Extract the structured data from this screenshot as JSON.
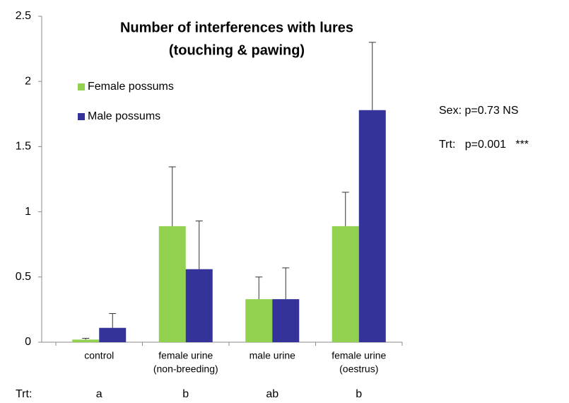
{
  "chart_data": {
    "type": "bar",
    "title": [
      "Number of interferences with lures",
      "(touching & pawing)"
    ],
    "categories": [
      [
        "control"
      ],
      [
        "female urine",
        "(non-breeding)"
      ],
      [
        "male urine"
      ],
      [
        "female urine",
        "(oestrus)"
      ]
    ],
    "series": [
      {
        "name": "Female possums",
        "color": "#92d050",
        "values": [
          0.02,
          0.89,
          0.33,
          0.89
        ],
        "errors": [
          0.01,
          0.455,
          0.17,
          0.26
        ]
      },
      {
        "name": "Male possums",
        "color": "#333399",
        "values": [
          0.11,
          0.56,
          0.33,
          1.78
        ],
        "errors": [
          0.11,
          0.37,
          0.24,
          0.52
        ]
      }
    ],
    "ylim": [
      0,
      2.5
    ],
    "yticks": [
      0,
      0.5,
      1,
      1.5,
      2,
      2.5
    ],
    "annotations": [
      "Sex: p=0.73 NS",
      "Trt:   p=0.001   ***"
    ],
    "group_label": "Trt:",
    "groups": [
      "a",
      "b",
      "ab",
      "b"
    ]
  }
}
